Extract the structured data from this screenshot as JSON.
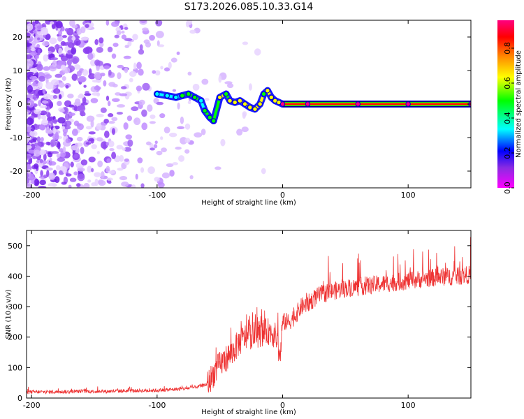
{
  "figure_title": "S173.2026.085.10.33.G14",
  "chart_data": [
    {
      "type": "heatmap",
      "title": "S173.2026.085.10.33.G14",
      "xlabel": "Height of straight line (km)",
      "ylabel": "Frequency (Hz)",
      "xlim": [
        -204,
        150
      ],
      "ylim": [
        -25,
        25
      ],
      "xticks": [
        -200,
        -100,
        0,
        100
      ],
      "yticks": [
        -20,
        -10,
        0,
        10,
        20
      ],
      "colorbar": {
        "label": "Normalized spectral amplitude",
        "range": [
          0.0,
          0.96
        ],
        "ticks": [
          0.0,
          0.2,
          0.4,
          0.6,
          0.8
        ],
        "colors": [
          "#ff00ff",
          "#8a2be2",
          "#0000ff",
          "#00ffff",
          "#00ff00",
          "#ffff00",
          "#ff8c00",
          "#ff0000",
          "#ff0080"
        ]
      },
      "ridge": {
        "x": [
          -100,
          -92,
          -85,
          -80,
          -75,
          -70,
          -65,
          -62,
          -58,
          -55,
          -50,
          -45,
          -42,
          -38,
          -34,
          -30,
          -26,
          -22,
          -18,
          -15,
          -12,
          -9,
          -6,
          -3,
          0,
          20,
          60,
          100,
          150
        ],
        "freq": [
          3,
          2.5,
          2,
          2.5,
          3,
          2,
          1,
          -2,
          -4,
          -5,
          2,
          3,
          1,
          0.5,
          1,
          0,
          -1,
          -1.5,
          0,
          3,
          4,
          2,
          1,
          0.5,
          0,
          0,
          0,
          0,
          0
        ],
        "amplitude": [
          0.3,
          0.35,
          0.4,
          0.45,
          0.5,
          0.45,
          0.4,
          0.5,
          0.45,
          0.5,
          0.55,
          0.5,
          0.55,
          0.6,
          0.55,
          0.6,
          0.65,
          0.6,
          0.55,
          0.5,
          0.55,
          0.6,
          0.6,
          0.55,
          0.9,
          0.92,
          0.93,
          0.93,
          0.93
        ]
      }
    },
    {
      "type": "line",
      "xlabel": "Height of straight line (km)",
      "ylabel": "SNR (10 * v/v)",
      "xlim": [
        -204,
        150
      ],
      "ylim": [
        0,
        550
      ],
      "xticks": [
        -200,
        -100,
        0,
        100
      ],
      "yticks": [
        0,
        100,
        200,
        300,
        400,
        500
      ],
      "series": [
        {
          "name": "SNR",
          "color": "#ee3333",
          "x": [
            -204,
            -180,
            -160,
            -140,
            -120,
            -100,
            -80,
            -70,
            -60,
            -55,
            -50,
            -45,
            -40,
            -35,
            -30,
            -25,
            -20,
            -15,
            -10,
            -5,
            -2,
            0,
            5,
            10,
            15,
            20,
            25,
            30,
            35,
            40,
            50,
            60,
            70,
            80,
            90,
            100,
            110,
            120,
            130,
            140,
            150
          ],
          "values": [
            20,
            20,
            22,
            22,
            24,
            25,
            30,
            35,
            45,
            80,
            110,
            130,
            150,
            180,
            200,
            205,
            210,
            215,
            220,
            200,
            130,
            250,
            250,
            270,
            300,
            310,
            325,
            340,
            345,
            350,
            360,
            365,
            370,
            375,
            380,
            385,
            390,
            395,
            398,
            400,
            405
          ]
        }
      ]
    }
  ]
}
